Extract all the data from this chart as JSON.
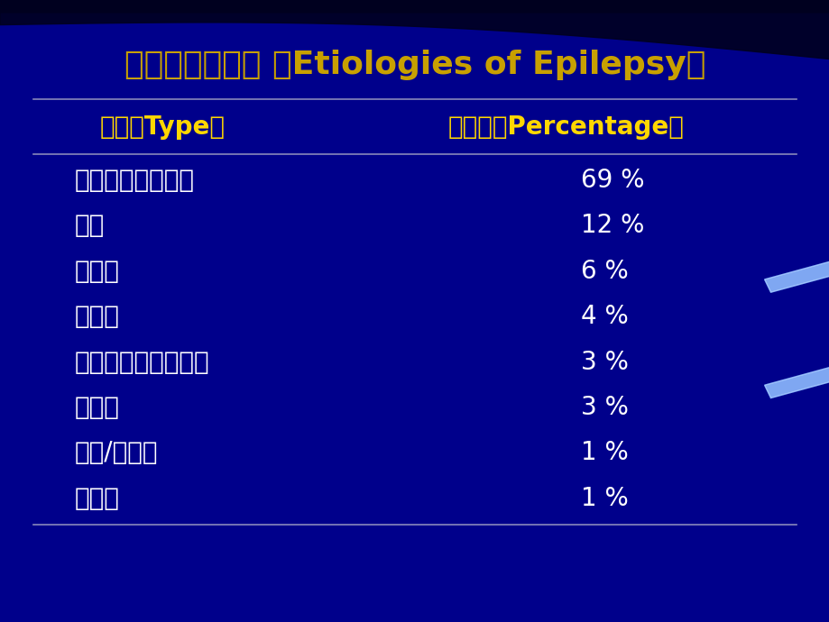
{
  "title": "儿童癌疫的病因 （Etiologies of Epilepsy）",
  "bg_color": "#00008B",
  "bg_dark": "#000030",
  "title_color": "#C8A000",
  "header_color": "#FFD700",
  "data_color": "#FFFFFF",
  "line_color": "#8888BB",
  "col1_header": "类型（Type）",
  "col2_header": "百分比（Percentage）",
  "rows": [
    [
      "特发性（隐源性）",
      "69 %"
    ],
    [
      "其他",
      "12 %"
    ],
    [
      "围产期",
      "6 %"
    ],
    [
      "创伤性",
      "4 %"
    ],
    [
      "中枢神经系统感染性",
      "3 %"
    ],
    [
      "先天性",
      "3 %"
    ],
    [
      "中毒/代谢性",
      "1 %"
    ],
    [
      "肿瘥性",
      "1 %"
    ]
  ],
  "title_fontsize": 26,
  "header_fontsize": 20,
  "data_fontsize": 20,
  "fig_width": 9.2,
  "fig_height": 6.9,
  "dpi": 100
}
